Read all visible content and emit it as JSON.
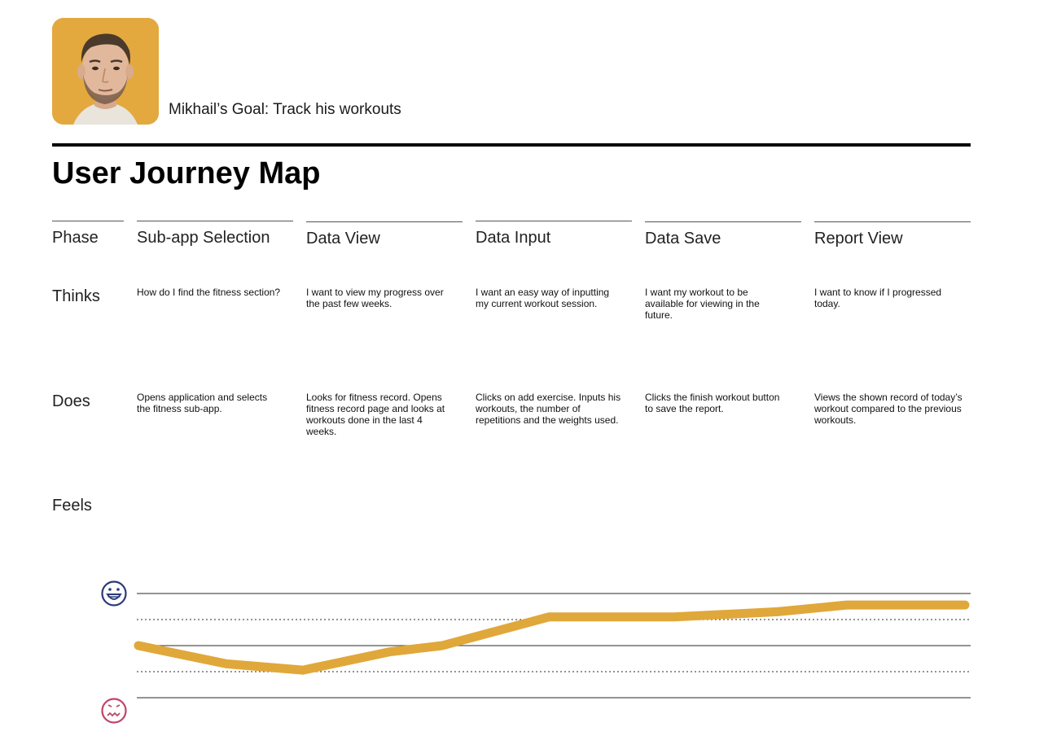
{
  "persona": {
    "goal": "Mikhail’s Goal: Track his workouts",
    "avatar_bg": "#e3a93f"
  },
  "title": "User Journey Map",
  "row_labels": {
    "phase": "Phase",
    "thinks": "Thinks",
    "does": "Does",
    "feels": "Feels"
  },
  "phases": [
    {
      "name": "Sub-app Selection",
      "thinks": "How do I find the fitness section?",
      "does": "Opens application and selects the fitness sub-app."
    },
    {
      "name": "Data View",
      "thinks": "I want to view my progress over the past few weeks.",
      "does": "Looks for fitness record. Opens fitness record page and looks at workouts done in the last 4 weeks."
    },
    {
      "name": "Data Input",
      "thinks": "I want an easy way of inputting my current workout session.",
      "does": "Clicks on add exercise. Inputs his workouts, the number of repetitions and the weights used."
    },
    {
      "name": "Data Save",
      "thinks": "I want my workout to be available for viewing in the future.",
      "does": "Clicks the finish workout button to save the report."
    },
    {
      "name": "Report View",
      "thinks": "I want to know if I progressed today.",
      "does": "Views the shown record of today’s workout compared to the previous workouts."
    }
  ],
  "feels_chart": {
    "scale_min": -1,
    "scale_max": 1,
    "emotion_curve": [
      0.0,
      -0.35,
      -0.47,
      -0.12,
      0.0,
      0.55,
      0.55,
      0.65,
      0.78,
      0.78
    ],
    "colors": {
      "line": "#e0a83a",
      "happy_icon": "#2b3a7a",
      "sad_icon": "#c0436a",
      "grid": "#555555"
    },
    "icons": {
      "top": "happy-face-icon",
      "bottom": "sad-face-icon"
    }
  }
}
